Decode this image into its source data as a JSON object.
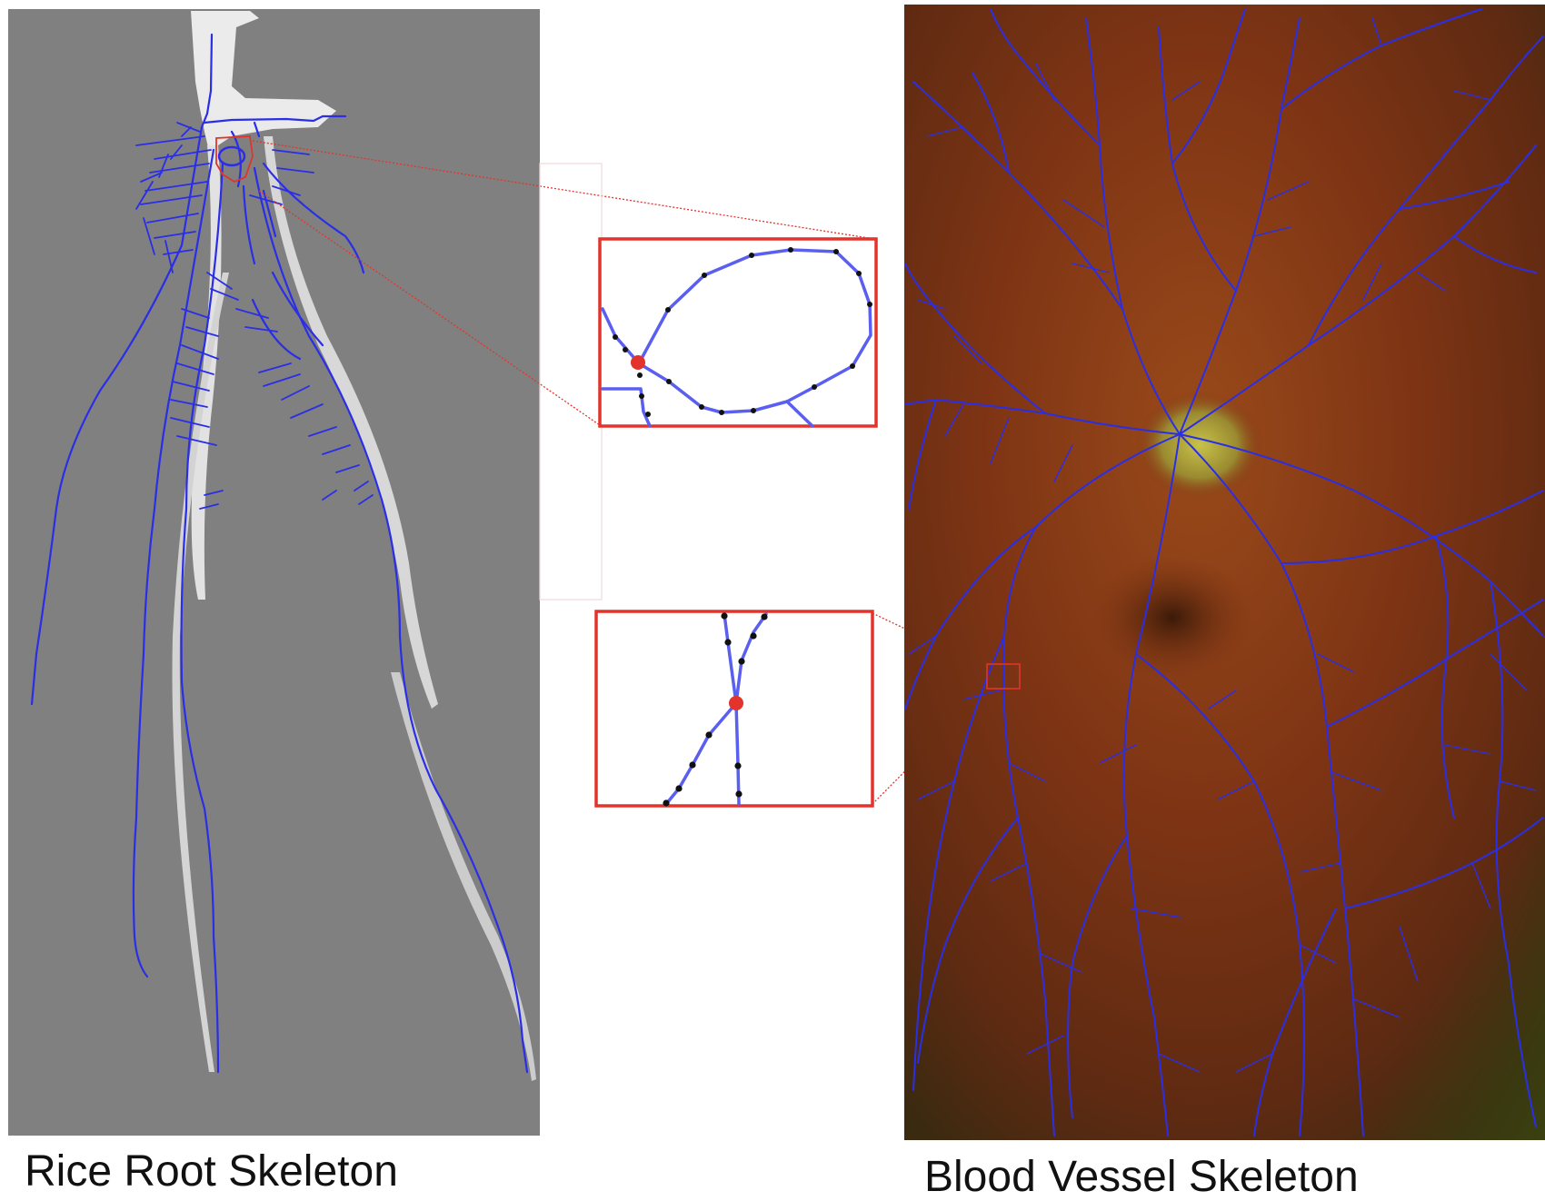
{
  "captions": {
    "left": "Rice Root Skeleton",
    "right": "Blood Vessel Skeleton"
  },
  "colors": {
    "skeleton": "#2a2ee6",
    "inset_skeleton": "#5a5ff0",
    "highlight": "#e2342c",
    "node": "#111111",
    "root_background": "#808080",
    "root_body": "#f2f2f2",
    "retina_dark": "#5a2a10",
    "retina_mid": "#8a3a18",
    "optic_disc": "#a8a83a"
  },
  "icons": {
    "left_panel": "rice-root-image",
    "right_panel": "retina-fundus-image",
    "top_inset": "loop-junction-zoom",
    "bottom_inset": "crossing-junction-zoom"
  }
}
